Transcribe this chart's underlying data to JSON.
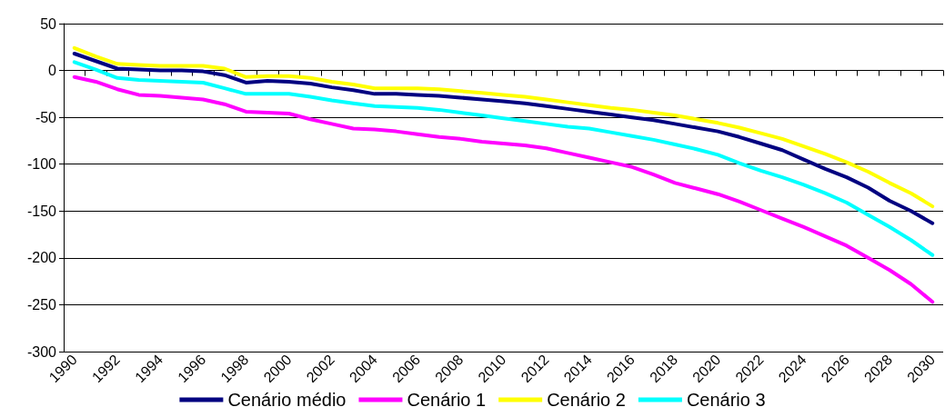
{
  "chart_data": {
    "type": "line",
    "categories": [
      "1990",
      null,
      "1992",
      null,
      "1994",
      null,
      "1996",
      null,
      "1998",
      null,
      "2000",
      null,
      "2002",
      null,
      "2004",
      null,
      "2006",
      null,
      "2008",
      null,
      "2010",
      null,
      "2012",
      null,
      "2014",
      null,
      "2016",
      null,
      "2018",
      null,
      "2020",
      null,
      "2022",
      null,
      "2024",
      null,
      "2026",
      null,
      "2028",
      null,
      "2030"
    ],
    "series": [
      {
        "name": "Cenário médio",
        "color": "#000080",
        "values": [
          18,
          10,
          2,
          1,
          0,
          0,
          -1,
          -5,
          -13,
          -11,
          -12,
          -14,
          -18,
          -21,
          -25,
          -25,
          -26,
          -27,
          -29,
          -31,
          -33,
          -35,
          -38,
          -41,
          -44,
          -47,
          -50,
          -53,
          -57,
          -61,
          -65,
          -71,
          -78,
          -85,
          -95,
          -105,
          -114,
          -125,
          -139,
          -150,
          -163
        ]
      },
      {
        "name": "Cenário 1",
        "color": "#ff00ff",
        "values": [
          -7,
          -12,
          -20,
          -26,
          -27,
          -29,
          -31,
          -36,
          -44,
          -45,
          -46,
          -52,
          -57,
          -62,
          -63,
          -65,
          -68,
          -71,
          -73,
          -76,
          -78,
          -80,
          -83,
          -88,
          -93,
          -98,
          -103,
          -111,
          -120,
          -126,
          -132,
          -140,
          -149,
          -158,
          -167,
          -177,
          -187,
          -200,
          -213,
          -228,
          -247
        ]
      },
      {
        "name": "Cenário 2",
        "color": "#ffff00",
        "values": [
          24,
          15,
          7,
          6,
          5,
          5,
          5,
          2,
          -7,
          -6,
          -6,
          -8,
          -12,
          -15,
          -19,
          -19,
          -19,
          -20,
          -22,
          -24,
          -26,
          -28,
          -31,
          -34,
          -37,
          -40,
          -42,
          -45,
          -48,
          -52,
          -56,
          -61,
          -67,
          -73,
          -81,
          -89,
          -98,
          -108,
          -120,
          -131,
          -145
        ]
      },
      {
        "name": "Cenário 3",
        "color": "#00ffff",
        "values": [
          9,
          1,
          -8,
          -10,
          -11,
          -12,
          -13,
          -19,
          -25,
          -25,
          -25,
          -28,
          -32,
          -35,
          -38,
          -39,
          -40,
          -42,
          -45,
          -48,
          -51,
          -54,
          -57,
          -60,
          -62,
          -66,
          -70,
          -74,
          -79,
          -84,
          -90,
          -99,
          -107,
          -114,
          -122,
          -131,
          -141,
          -154,
          -167,
          -181,
          -197
        ]
      }
    ],
    "ylim": [
      -300,
      50
    ],
    "yticks": [
      -300,
      -250,
      -200,
      -150,
      -100,
      -50,
      0,
      50
    ],
    "grid": "y",
    "legend": "bottom",
    "marker": "none",
    "line_style": "solid"
  }
}
